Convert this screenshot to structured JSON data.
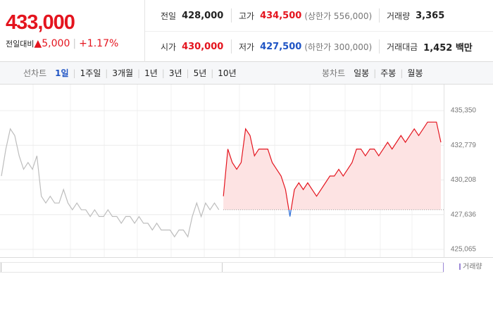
{
  "quote": {
    "price": "433,000",
    "change_label": "전일대비",
    "change_arrow": "▲",
    "change": "5,000",
    "change_rate": "+1.17%"
  },
  "stats": [
    [
      {
        "label": "전일",
        "value": "428,000",
        "color": "#222222"
      },
      {
        "label": "고가",
        "value": "434,500",
        "color": "#e4141e",
        "note": "(상한가 556,000)"
      },
      {
        "label": "거래량",
        "value": "3,365",
        "color": "#222222"
      }
    ],
    [
      {
        "label": "시가",
        "value": "430,000",
        "color": "#e4141e"
      },
      {
        "label": "저가",
        "value": "427,500",
        "color": "#1f54c4",
        "note": "(하한가 300,000)"
      },
      {
        "label": "거래대금",
        "value": "1,452 백만",
        "color": "#222222"
      }
    ]
  ],
  "tabs": {
    "line_label": "선차트",
    "line_periods": [
      "1일",
      "1주일",
      "3개월",
      "1년",
      "3년",
      "5년",
      "10년"
    ],
    "line_active": 0,
    "candle_label": "봉차트",
    "candle_periods": [
      "일봉",
      "주봉",
      "월봉"
    ]
  },
  "chart_data": {
    "type": "line",
    "ylim": [
      425065,
      435350
    ],
    "yticks": [
      {
        "value": 435350,
        "label": "435,350"
      },
      {
        "value": 432779,
        "label": "432,779"
      },
      {
        "value": 430208,
        "label": "430,208"
      },
      {
        "value": 427636,
        "label": "427,636"
      },
      {
        "value": 425065,
        "label": "425,065"
      }
    ],
    "grid": true,
    "baseline": 428000,
    "up_color": "#e4141e",
    "up_fill": "#fde3e3",
    "down_color": "#2f6fd6",
    "down_fill": "#dde7fb",
    "volume_label": "거래량",
    "volume_color": "#9b87d6",
    "series": [
      {
        "color": "#bdbdbd",
        "values": [
          430500,
          432500,
          434000,
          433500,
          432000,
          431000,
          431500,
          431000,
          432000,
          429000,
          428500,
          429000,
          428500,
          428500,
          429500,
          428500,
          428000,
          428500,
          428000,
          428000,
          427500,
          428000,
          427500,
          427500,
          428000,
          427500,
          427500,
          427000,
          427500,
          427500,
          427000,
          427500,
          427000,
          427000,
          426500,
          427000,
          426500,
          426500,
          426500,
          426000,
          426500,
          426500,
          426000,
          427500,
          428500,
          427500,
          428500,
          428000,
          428500,
          428000,
          null,
          null,
          null,
          null,
          null,
          null,
          null,
          null,
          null,
          null,
          null,
          null,
          null,
          null,
          null,
          null,
          null,
          null,
          null,
          null,
          null,
          null,
          null,
          null,
          null,
          null,
          null,
          null,
          null,
          null,
          null,
          null,
          null,
          null,
          null,
          null,
          null,
          null,
          null,
          null,
          null,
          null,
          null,
          null,
          null,
          null,
          null,
          null,
          null,
          null
        ]
      },
      {
        "color": "#e4141e",
        "values": [
          null,
          null,
          null,
          null,
          null,
          null,
          null,
          null,
          null,
          null,
          null,
          null,
          null,
          null,
          null,
          null,
          null,
          null,
          null,
          null,
          null,
          null,
          null,
          null,
          null,
          null,
          null,
          null,
          null,
          null,
          null,
          null,
          null,
          null,
          null,
          null,
          null,
          null,
          null,
          null,
          null,
          null,
          null,
          null,
          null,
          null,
          null,
          null,
          null,
          null,
          429000,
          432500,
          431500,
          431000,
          431500,
          434000,
          433500,
          432000,
          432500,
          432500,
          432500,
          431500,
          431000,
          430500,
          429500,
          427500,
          429500,
          430000,
          429500,
          430000,
          429500,
          429000,
          429500,
          430000,
          430500,
          430500,
          431000,
          430500,
          431000,
          431500,
          432500,
          432500,
          432000,
          432500,
          432500,
          432000,
          432500,
          433000,
          432500,
          433000,
          433500,
          433000,
          433500,
          434000,
          433500,
          434000,
          434500,
          434500,
          434500,
          433000
        ]
      }
    ]
  }
}
